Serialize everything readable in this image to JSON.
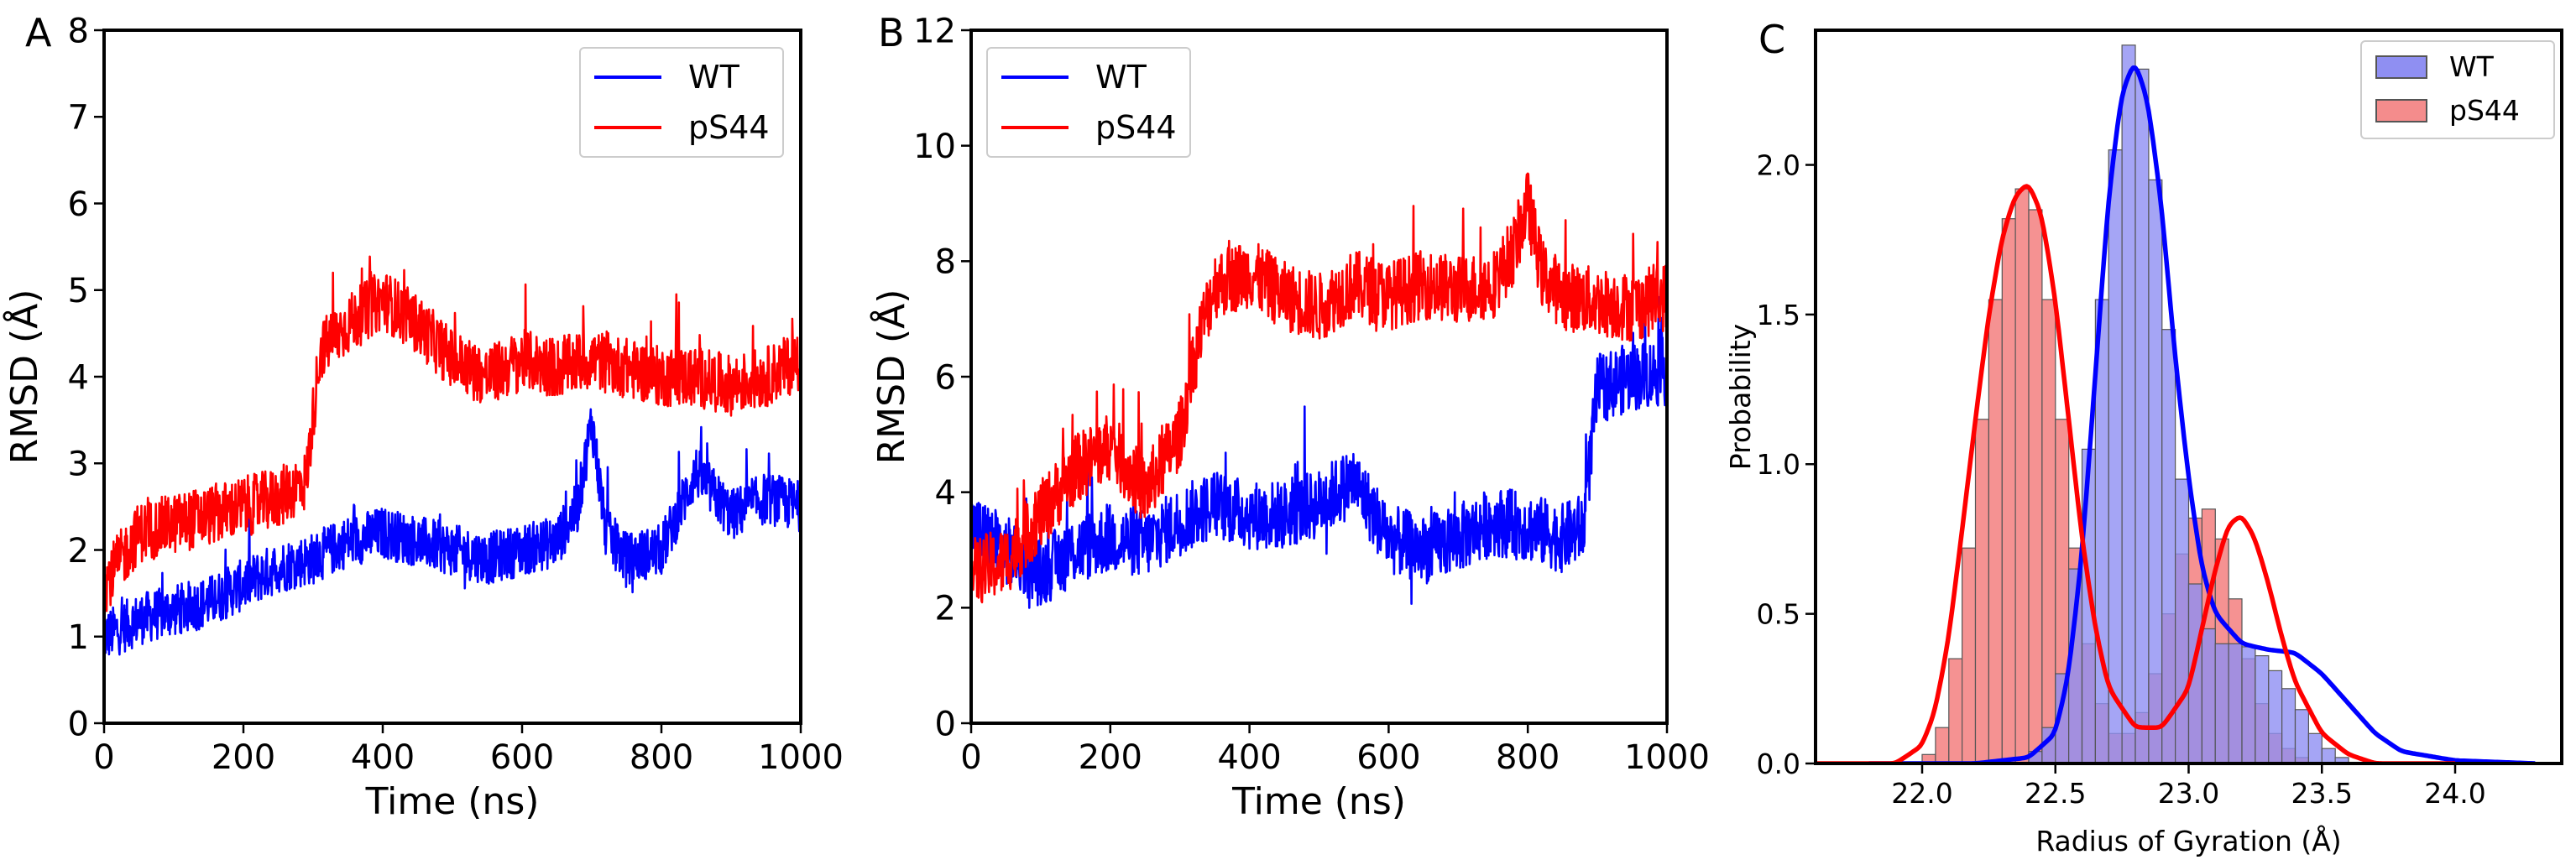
{
  "colors": {
    "wt": "#0000ff",
    "ps44": "#ff0000",
    "wt_fill": "#8f8ff2",
    "ps44_fill": "#f48c8c"
  },
  "chart_data": [
    {
      "panel": "A",
      "type": "line",
      "title": "",
      "xlabel": "Time (ns)",
      "ylabel": "RMSD (Å)",
      "xlim": [
        0,
        1000
      ],
      "ylim": [
        0,
        8
      ],
      "xticks": [
        "0",
        "200",
        "400",
        "600",
        "800",
        "1000"
      ],
      "yticks": [
        "0",
        "1",
        "2",
        "3",
        "4",
        "5",
        "6",
        "7",
        "8"
      ],
      "legend": {
        "position": "upper-right",
        "entries": [
          "WT",
          "pS44"
        ]
      },
      "series": [
        {
          "name": "WT",
          "noise": 0.3,
          "x": [
            0,
            50,
            100,
            150,
            200,
            250,
            300,
            350,
            400,
            450,
            500,
            550,
            600,
            650,
            680,
            700,
            720,
            750,
            800,
            850,
            900,
            950,
            1000
          ],
          "y": [
            1.0,
            1.2,
            1.3,
            1.4,
            1.6,
            1.8,
            1.9,
            2.1,
            2.2,
            2.1,
            2.0,
            1.9,
            2.0,
            2.1,
            2.5,
            3.5,
            2.2,
            1.9,
            2.0,
            2.9,
            2.4,
            2.6,
            2.5
          ]
        },
        {
          "name": "pS44",
          "noise": 0.35,
          "x": [
            0,
            50,
            100,
            150,
            200,
            250,
            290,
            310,
            350,
            400,
            450,
            500,
            550,
            600,
            650,
            700,
            750,
            800,
            850,
            900,
            950,
            1000
          ],
          "y": [
            1.6,
            2.2,
            2.3,
            2.4,
            2.5,
            2.6,
            2.8,
            4.3,
            4.6,
            4.9,
            4.6,
            4.2,
            4.0,
            4.2,
            4.1,
            4.2,
            4.1,
            4.0,
            4.0,
            3.9,
            4.0,
            4.2
          ]
        }
      ]
    },
    {
      "panel": "B",
      "type": "line",
      "title": "",
      "xlabel": "Time (ns)",
      "ylabel": "RMSD (Å)",
      "xlim": [
        0,
        1000
      ],
      "ylim": [
        0,
        12
      ],
      "xticks": [
        "0",
        "200",
        "400",
        "600",
        "800",
        "1000"
      ],
      "yticks": [
        "0",
        "2",
        "4",
        "6",
        "8",
        "10",
        "12"
      ],
      "legend": {
        "position": "upper-left",
        "entries": [
          "WT",
          "pS44"
        ]
      },
      "series": [
        {
          "name": "WT",
          "noise": 0.6,
          "x": [
            0,
            50,
            100,
            150,
            200,
            250,
            300,
            350,
            400,
            450,
            500,
            550,
            600,
            650,
            700,
            750,
            800,
            850,
            880,
            900,
            950,
            1000
          ],
          "y": [
            3.4,
            3.0,
            2.6,
            3.0,
            3.2,
            3.1,
            3.5,
            3.8,
            3.6,
            3.6,
            3.8,
            4.2,
            3.2,
            3.0,
            3.2,
            3.5,
            3.4,
            3.2,
            3.4,
            5.8,
            6.0,
            6.1
          ]
        },
        {
          "name": "pS44",
          "noise": 0.6,
          "x": [
            0,
            50,
            100,
            150,
            200,
            250,
            300,
            330,
            350,
            400,
            450,
            500,
            550,
            600,
            650,
            700,
            750,
            780,
            800,
            820,
            850,
            900,
            950,
            1000
          ],
          "y": [
            2.6,
            2.8,
            3.6,
            4.4,
            4.8,
            4.0,
            5.0,
            6.8,
            7.6,
            7.8,
            7.4,
            7.2,
            7.6,
            7.4,
            7.6,
            7.5,
            7.6,
            8.2,
            9.0,
            7.8,
            7.4,
            7.3,
            7.2,
            7.4
          ]
        }
      ]
    },
    {
      "panel": "C",
      "type": "histogram",
      "title": "",
      "xlabel": "Radius of Gyration (Å)",
      "ylabel": "Probability",
      "xlim": [
        21.6,
        24.4
      ],
      "ylim": [
        0,
        2.45
      ],
      "xticks": [
        "22.0",
        "22.5",
        "23.0",
        "23.5",
        "24.0"
      ],
      "yticks": [
        "0.0",
        "0.5",
        "1.0",
        "1.5",
        "2.0"
      ],
      "legend": {
        "position": "upper-right",
        "entries": [
          "WT",
          "pS44"
        ]
      },
      "series": [
        {
          "name": "WT",
          "bin_start": 22.4,
          "bin_width": 0.05,
          "values": [
            0.04,
            0.12,
            0.3,
            0.65,
            1.05,
            1.55,
            2.05,
            2.4,
            2.32,
            1.95,
            1.45,
            0.95,
            0.6,
            0.45,
            0.4,
            0.4,
            0.39,
            0.36,
            0.31,
            0.25,
            0.18,
            0.1,
            0.05,
            0.02
          ],
          "kde": {
            "x": [
              21.8,
              22.2,
              22.4,
              22.5,
              22.55,
              22.6,
              22.65,
              22.7,
              22.75,
              22.8,
              22.85,
              22.9,
              22.95,
              23.0,
              23.05,
              23.1,
              23.2,
              23.3,
              23.4,
              23.5,
              23.6,
              23.7,
              23.8,
              24.0,
              24.3
            ],
            "y": [
              0.0,
              0.0,
              0.02,
              0.1,
              0.3,
              0.7,
              1.3,
              1.9,
              2.25,
              2.35,
              2.2,
              1.85,
              1.35,
              0.95,
              0.65,
              0.5,
              0.4,
              0.38,
              0.37,
              0.3,
              0.2,
              0.1,
              0.04,
              0.01,
              0.0
            ]
          }
        },
        {
          "name": "pS44",
          "bin_start": 22.0,
          "bin_width": 0.05,
          "values": [
            0.03,
            0.12,
            0.35,
            0.72,
            1.15,
            1.55,
            1.82,
            1.92,
            1.85,
            1.55,
            1.15,
            0.72,
            0.4,
            0.2,
            0.1,
            0.1,
            0.17,
            0.3,
            0.5,
            0.7,
            0.82,
            0.85,
            0.75,
            0.55,
            0.35,
            0.2,
            0.1,
            0.05,
            0.02
          ],
          "kde": {
            "x": [
              21.6,
              21.9,
              22.0,
              22.05,
              22.1,
              22.15,
              22.2,
              22.25,
              22.3,
              22.35,
              22.4,
              22.45,
              22.5,
              22.55,
              22.6,
              22.65,
              22.7,
              22.8,
              22.9,
              23.0,
              23.05,
              23.1,
              23.15,
              23.2,
              23.25,
              23.3,
              23.35,
              23.4,
              23.5,
              23.6,
              23.7,
              24.0
            ],
            "y": [
              0.0,
              0.0,
              0.06,
              0.18,
              0.42,
              0.78,
              1.15,
              1.5,
              1.76,
              1.9,
              1.94,
              1.83,
              1.55,
              1.15,
              0.75,
              0.45,
              0.25,
              0.12,
              0.12,
              0.25,
              0.45,
              0.65,
              0.8,
              0.83,
              0.75,
              0.6,
              0.42,
              0.27,
              0.1,
              0.03,
              0.0,
              0.0
            ]
          }
        }
      ]
    }
  ]
}
